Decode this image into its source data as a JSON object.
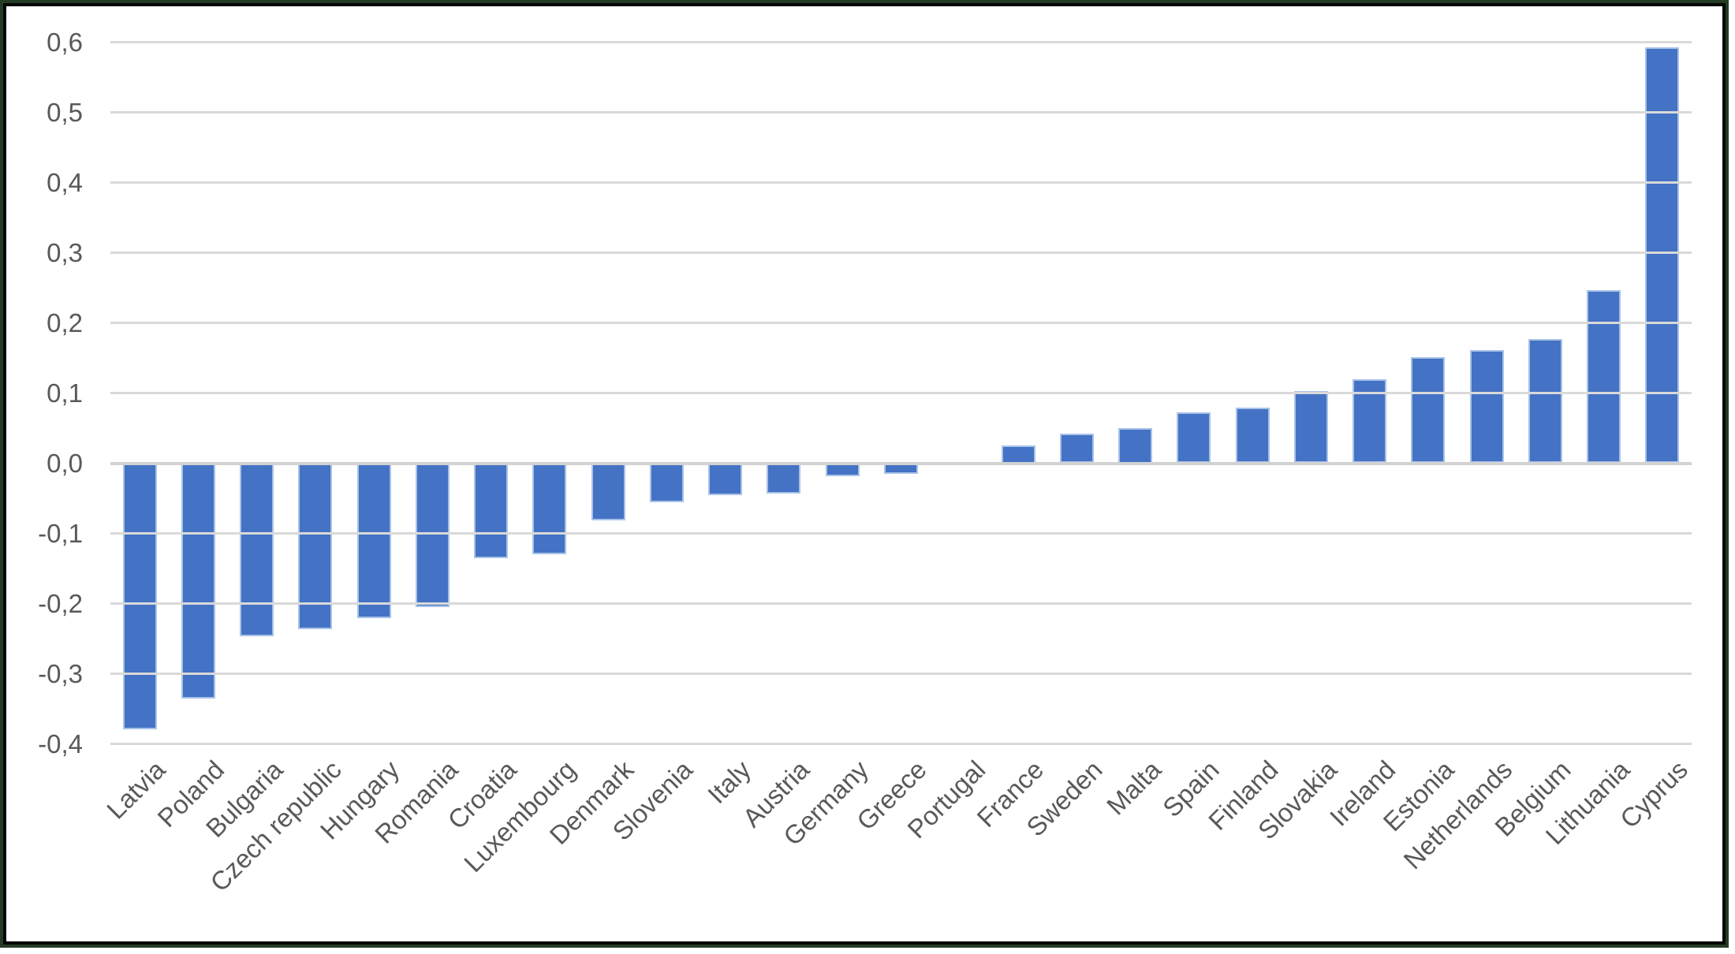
{
  "chart_data": {
    "type": "bar",
    "title": "",
    "categories": [
      "Latvia",
      "Poland",
      "Bulgaria",
      "Czech republic",
      "Hungary",
      "Romania",
      "Croatia",
      "Luxembourg",
      "Denmark",
      "Slovenia",
      "Italy",
      "Austria",
      "Germany",
      "Greece",
      "Portugal",
      "France",
      "Sweden",
      "Malta",
      "Spain",
      "Finland",
      "Slovakia",
      "Ireland",
      "Estonia",
      "Netherlands",
      "Belgium",
      "Lithuania",
      "Cyprus"
    ],
    "values": [
      -0.379,
      -0.335,
      -0.247,
      -0.237,
      -0.221,
      -0.205,
      -0.135,
      -0.13,
      -0.082,
      -0.056,
      -0.045,
      -0.043,
      -0.019,
      -0.015,
      0,
      0.025,
      0.042,
      0.05,
      0.073,
      0.079,
      0.103,
      0.12,
      0.151,
      0.161,
      0.177,
      0.247,
      0.593
    ],
    "ylim": [
      -0.4,
      0.6
    ],
    "ytick_step": 0.1,
    "ytick_labels": [
      "0,6",
      "0,5",
      "0,4",
      "0,3",
      "0,2",
      "0,1",
      "0,0",
      "-0,1",
      "-0,2",
      "-0,3",
      "-0,4"
    ],
    "decimal_separator": ",",
    "grid": true,
    "legend": "none",
    "xlabel": "",
    "ylabel": "",
    "colors": {
      "bar_fill": "#4472C4",
      "bar_border": "#A7C2E8",
      "gridline": "#D9D9D9",
      "zero_line": "#D2D2D2",
      "tick_label": "#595959",
      "frame_outer_green": "#243c24",
      "frame_inner_black": "#060606",
      "background": "#FFFFFF"
    }
  }
}
